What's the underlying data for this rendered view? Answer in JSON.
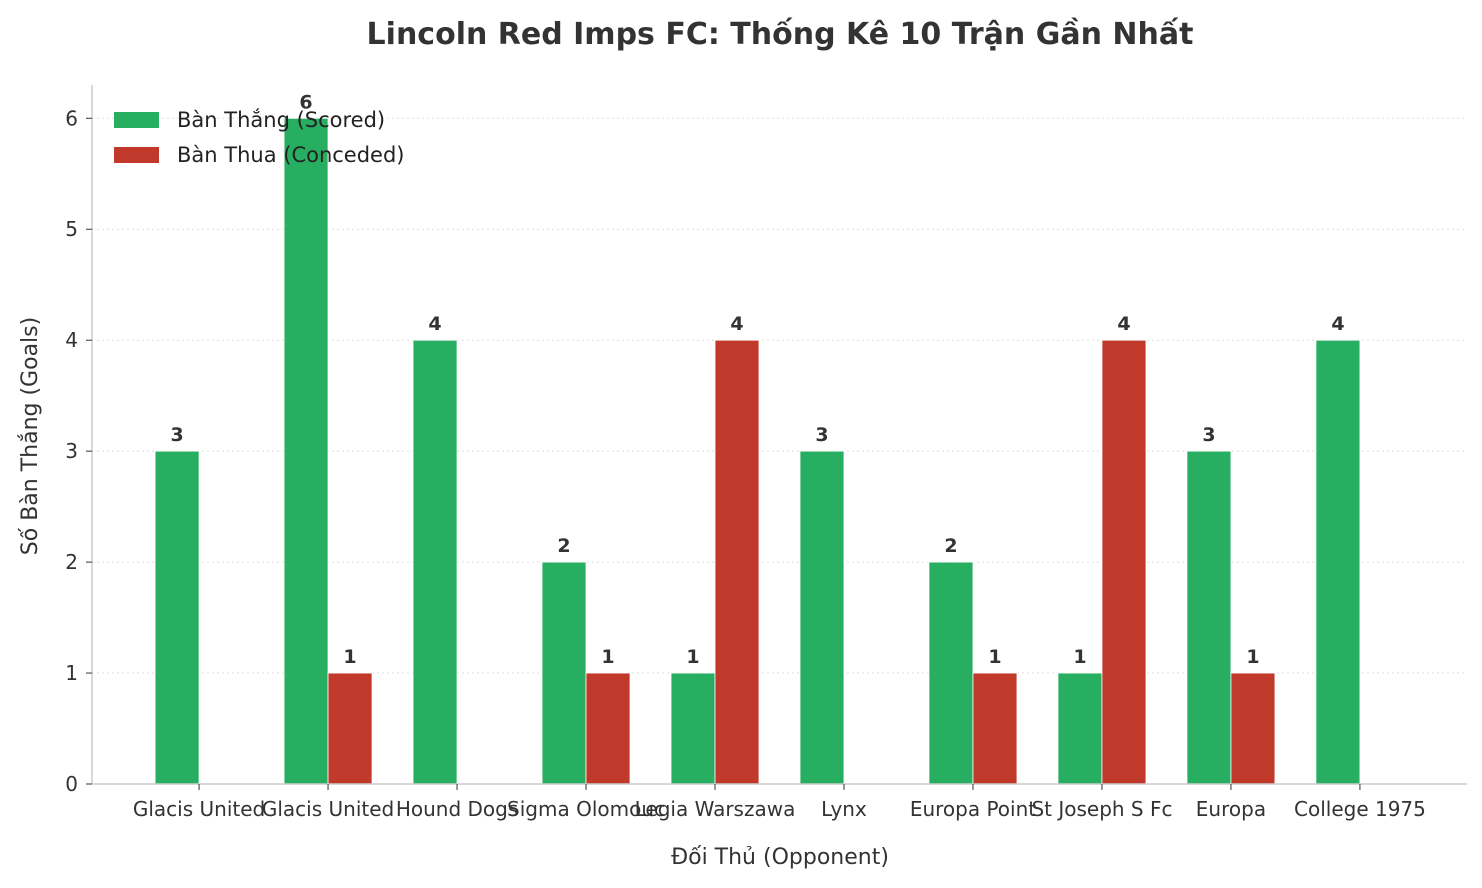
{
  "chart_data": {
    "type": "bar",
    "title": "Lincoln Red Imps FC: Thống Kê 10 Trận Gần Nhất",
    "xlabel": "Đối Thủ (Opponent)",
    "ylabel": "Số Bàn Thắng (Goals)",
    "categories": [
      "Glacis United",
      "Glacis United",
      "Hound Dogs",
      "Sigma Olomouc",
      "Legia Warszawa",
      "Lynx",
      "Europa Point",
      "St Joseph S Fc",
      "Europa",
      "College 1975"
    ],
    "series": [
      {
        "name": "Bàn Thắng (Scored)",
        "color": "#27ae60",
        "values": [
          3,
          6,
          4,
          2,
          1,
          3,
          2,
          1,
          3,
          4
        ]
      },
      {
        "name": "Bàn Thua (Conceded)",
        "color": "#c0392b",
        "values": [
          0,
          1,
          0,
          1,
          4,
          0,
          1,
          4,
          1,
          0
        ]
      }
    ],
    "yticks": [
      0,
      1,
      2,
      3,
      4,
      5,
      6
    ],
    "ylim": [
      0,
      6.3
    ],
    "grid": "y-dotted",
    "legend": "top-left",
    "show_labels_for_zero": false
  }
}
